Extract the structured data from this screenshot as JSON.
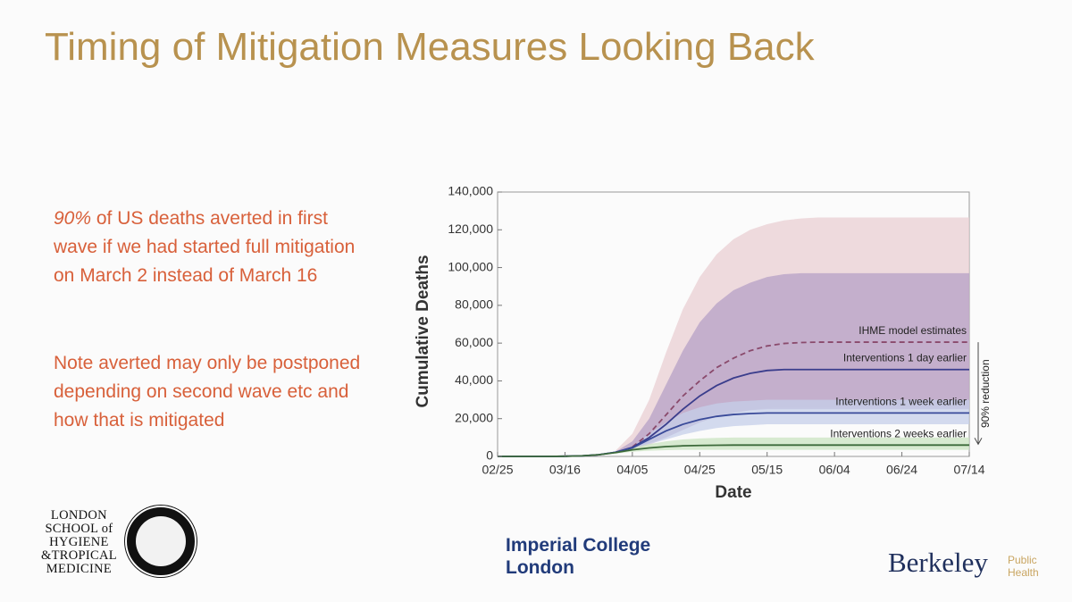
{
  "header": {
    "title": "Timing of Mitigation Measures Looking Back"
  },
  "body": {
    "paragraphs": [
      {
        "emphasis": "90%",
        "text": "of US deaths averted in first wave if we had started full mitigation on March 2 instead of March 16"
      },
      {
        "text": "Note averted may only be postponed depending on second wave etc and how that is mitigated"
      }
    ]
  },
  "logos": {
    "lshtm": [
      "LONDON",
      "SCHOOL of",
      "HYGIENE",
      "&TROPICAL",
      "MEDICINE"
    ],
    "imperial": [
      "Imperial College",
      "London"
    ],
    "berkeley": "Berkeley",
    "berkeley_sub": [
      "Public",
      "Health"
    ]
  },
  "chart_data": {
    "type": "line",
    "xlabel": "Date",
    "ylabel": "Cumulative Deaths",
    "annotation": "90% reduction",
    "x": [
      "02/25",
      "03/01",
      "03/06",
      "03/11",
      "03/16",
      "03/21",
      "03/26",
      "03/31",
      "04/05",
      "04/10",
      "04/15",
      "04/20",
      "04/25",
      "04/30",
      "05/05",
      "05/10",
      "05/15",
      "05/20",
      "05/25",
      "05/30",
      "06/04",
      "06/09",
      "06/14",
      "06/19",
      "06/24",
      "06/29",
      "07/04",
      "07/09",
      "07/14"
    ],
    "xlim": [
      "02/25",
      "07/14"
    ],
    "xticks": [
      "02/25",
      "03/16",
      "04/05",
      "04/25",
      "05/15",
      "06/04",
      "06/24",
      "07/14"
    ],
    "ylim": [
      0,
      140000
    ],
    "yticks": [
      0,
      {
        "value": 20000,
        "label": "20,000"
      },
      {
        "value": 40000,
        "label": "40,000"
      },
      {
        "value": 60000,
        "label": "60,000"
      },
      {
        "value": 80000,
        "label": "80,000"
      },
      {
        "value": 100000,
        "label": "100,000"
      },
      {
        "value": 120000,
        "label": "120,000"
      },
      {
        "value": 140000,
        "label": "140,000"
      }
    ],
    "series": [
      {
        "name": "IHME model estimates",
        "color": "#8a4a6c",
        "band_color": "#e9cfd3",
        "dashed": true,
        "values": [
          null,
          null,
          null,
          null,
          null,
          null,
          null,
          null,
          5000,
          12000,
          22000,
          32000,
          40000,
          47000,
          52000,
          56000,
          58500,
          59800,
          60300,
          60500,
          60500,
          60500,
          60500,
          60500,
          60500,
          60500,
          60500,
          60500,
          60500
        ],
        "upper": [
          null,
          null,
          null,
          null,
          null,
          null,
          null,
          3000,
          12000,
          30000,
          55000,
          78000,
          95000,
          107000,
          115000,
          120000,
          123000,
          125000,
          126000,
          126500,
          126500,
          126500,
          126500,
          126500,
          126500,
          126500,
          126500,
          126500,
          126500
        ],
        "lower": [
          null,
          null,
          null,
          null,
          null,
          null,
          null,
          2000,
          3000,
          6000,
          10000,
          14000,
          18000,
          21000,
          23000,
          24500,
          25500,
          26000,
          26000,
          26000,
          26000,
          26000,
          26000,
          26000,
          26000,
          26000,
          26000,
          26000,
          26000
        ]
      },
      {
        "name": "Interventions 1 day earlier",
        "color": "#3a3d8c",
        "band_color": "#b6a0c6",
        "dashed": false,
        "values": [
          0,
          0,
          0,
          0,
          100,
          300,
          900,
          2200,
          4800,
          10000,
          17000,
          25000,
          32000,
          37500,
          41500,
          44000,
          45500,
          46000,
          46000,
          46000,
          46000,
          46000,
          46000,
          46000,
          46000,
          46000,
          46000,
          46000,
          46000
        ],
        "upper": [
          null,
          null,
          null,
          null,
          null,
          null,
          null,
          2500,
          8000,
          20000,
          38000,
          56000,
          71000,
          81000,
          88000,
          92000,
          95000,
          96500,
          97000,
          97000,
          97000,
          97000,
          97000,
          97000,
          97000,
          97000,
          97000,
          97000,
          97000
        ],
        "lower": [
          null,
          null,
          null,
          null,
          null,
          null,
          null,
          2000,
          4000,
          7000,
          10000,
          14000,
          18000,
          21000,
          23000,
          24500,
          25000,
          25000,
          25000,
          25000,
          25000,
          25000,
          25000,
          25000,
          25000,
          25000,
          25000,
          25000,
          25000
        ]
      },
      {
        "name": "Interventions 1 week earlier",
        "color": "#394a99",
        "band_color": "#c6cfe9",
        "dashed": false,
        "values": [
          0,
          0,
          0,
          0,
          100,
          300,
          900,
          2200,
          4500,
          9000,
          13500,
          17000,
          19500,
          21200,
          22200,
          22700,
          23000,
          23000,
          23000,
          23000,
          23000,
          23000,
          23000,
          23000,
          23000,
          23000,
          23000,
          23000,
          23000
        ],
        "upper": [
          null,
          null,
          null,
          null,
          null,
          null,
          null,
          2500,
          5000,
          12000,
          18000,
          23000,
          26000,
          28000,
          29000,
          29500,
          30000,
          30000,
          30000,
          30000,
          30000,
          30000,
          30000,
          30000,
          30000,
          30000,
          30000,
          30000,
          30000
        ],
        "lower": [
          null,
          null,
          null,
          null,
          null,
          null,
          null,
          2000,
          4000,
          6500,
          9000,
          11500,
          13500,
          15000,
          16000,
          16500,
          17000,
          17000,
          17000,
          17000,
          17000,
          17000,
          17000,
          17000,
          17000,
          17000,
          17000,
          17000,
          17000
        ]
      },
      {
        "name": "Interventions 2 weeks earlier",
        "color": "#3c6a3a",
        "band_color": "#cbe4c1",
        "dashed": false,
        "values": [
          0,
          0,
          0,
          0,
          100,
          300,
          900,
          2000,
          3500,
          4500,
          5200,
          5600,
          5800,
          5900,
          6000,
          6000,
          6000,
          6000,
          6000,
          6000,
          6000,
          6000,
          6000,
          6000,
          6000,
          6000,
          6000,
          6000,
          6000
        ],
        "upper": [
          null,
          null,
          null,
          null,
          null,
          null,
          null,
          2500,
          4500,
          6500,
          8000,
          9000,
          9500,
          9800,
          10000,
          10000,
          10000,
          10000,
          10000,
          10000,
          10000,
          10000,
          10000,
          10000,
          10000,
          10000,
          10000,
          10000,
          10000
        ],
        "lower": [
          null,
          null,
          null,
          null,
          null,
          null,
          null,
          1500,
          2500,
          3000,
          3300,
          3500,
          3500,
          3500,
          3500,
          3500,
          3500,
          3500,
          3500,
          3500,
          3500,
          3500,
          3500,
          3500,
          3500,
          3500,
          3500,
          3500,
          3500
        ]
      }
    ]
  }
}
